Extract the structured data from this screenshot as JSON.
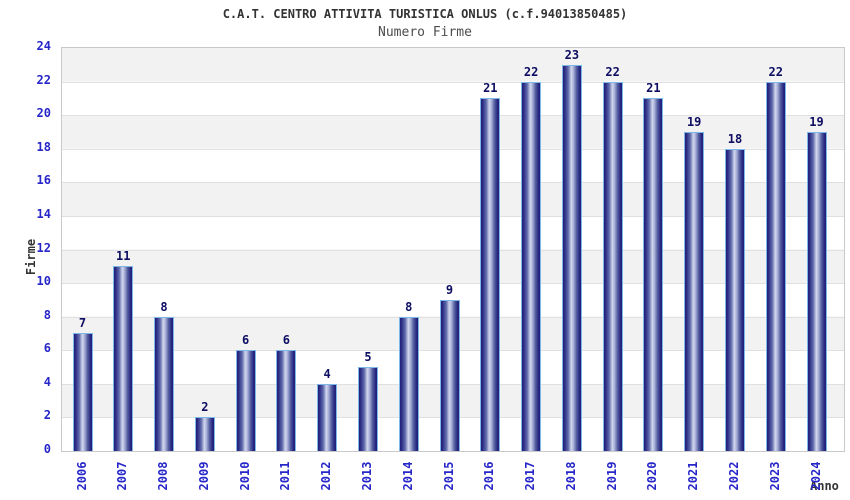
{
  "chart_data": {
    "type": "bar",
    "title": "C.A.T. CENTRO ATTIVITA TURISTICA ONLUS (c.f.94013850485)",
    "subtitle": "Numero Firme",
    "xlabel": "Anno",
    "ylabel": "Firme",
    "categories": [
      "2006",
      "2007",
      "2008",
      "2009",
      "2010",
      "2011",
      "2012",
      "2013",
      "2014",
      "2015",
      "2016",
      "2017",
      "2018",
      "2019",
      "2020",
      "2021",
      "2022",
      "2023",
      "2024"
    ],
    "values": [
      7,
      11,
      8,
      2,
      6,
      6,
      4,
      5,
      8,
      9,
      21,
      22,
      23,
      22,
      21,
      19,
      18,
      22,
      19
    ],
    "ylim": [
      0,
      24
    ],
    "ytick_step": 2,
    "yticks": [
      0,
      2,
      4,
      6,
      8,
      10,
      12,
      14,
      16,
      18,
      20,
      22,
      24
    ],
    "grid": "horizontal-bands-alternating",
    "legend": "none",
    "bar_value_labels_shown": true,
    "colors": {
      "title": "#333333",
      "subtitle": "#4d4d4d",
      "tick_label": "#2626c9",
      "value_label": "#0d0d62",
      "axis_title": "#333333",
      "bar_border": "#7db7e8",
      "bar_edge": "#20207a",
      "bar_highlight": "#d2d7ec",
      "band": "#f2f2f2",
      "grid_line": "#e0e0e0",
      "plot_border": "#c9c9c9"
    }
  }
}
